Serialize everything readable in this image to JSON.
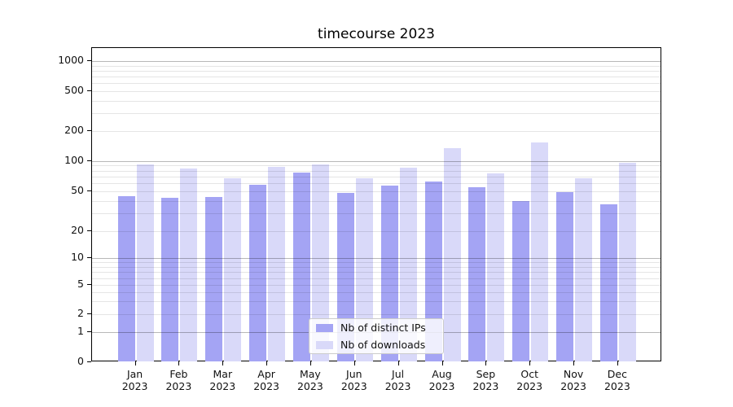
{
  "title": "timecourse 2023",
  "colors": {
    "distinct_ips": "#a4a4f4",
    "downloads": "#d9d9f9",
    "axis": "#000000"
  },
  "legend": {
    "entries": [
      {
        "label": "Nb of distinct IPs",
        "series": "distinct_ips"
      },
      {
        "label": "Nb of downloads",
        "series": "downloads"
      }
    ]
  },
  "chart_data": {
    "type": "bar",
    "title": "timecourse 2023",
    "categories": [
      "Jan 2023",
      "Feb 2023",
      "Mar 2023",
      "Apr 2023",
      "May 2023",
      "Jun 2023",
      "Jul 2023",
      "Aug 2023",
      "Sep 2023",
      "Oct 2023",
      "Nov 2023",
      "Dec 2023"
    ],
    "x_tick_line1": [
      "Jan",
      "Feb",
      "Mar",
      "Apr",
      "May",
      "Jun",
      "Jul",
      "Aug",
      "Sep",
      "Oct",
      "Nov",
      "Dec"
    ],
    "x_tick_line2": [
      "2023",
      "2023",
      "2023",
      "2023",
      "2023",
      "2023",
      "2023",
      "2023",
      "2023",
      "2023",
      "2023",
      "2023"
    ],
    "series": [
      {
        "name": "Nb of distinct IPs",
        "color_key": "distinct_ips",
        "values": [
          45,
          43,
          44,
          58,
          77,
          48,
          57,
          62,
          55,
          40,
          49,
          37
        ]
      },
      {
        "name": "Nb of downloads",
        "color_key": "downloads",
        "values": [
          92,
          84,
          68,
          88,
          93,
          68,
          86,
          135,
          75,
          153,
          67,
          96
        ]
      }
    ],
    "yscale": "symlog",
    "y_ticks": [
      1000,
      500,
      200,
      100,
      50,
      20,
      10,
      5,
      2,
      1,
      0
    ],
    "ylim": [
      0,
      1300
    ],
    "grid": "on",
    "legend_position": "lower center"
  }
}
